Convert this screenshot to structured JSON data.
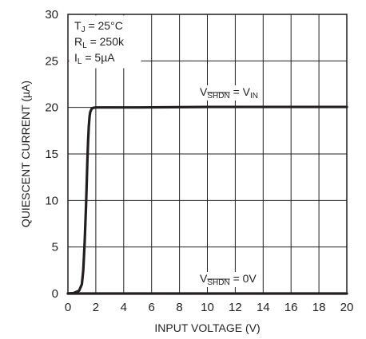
{
  "chart_data": {
    "type": "line",
    "xlabel": "INPUT VOLTAGE (V)",
    "ylabel": "QUIESCENT CURRENT (µA)",
    "xlim": [
      0,
      20
    ],
    "ylim": [
      0,
      30
    ],
    "xticks": [
      0,
      2,
      4,
      6,
      8,
      10,
      12,
      14,
      16,
      18,
      20
    ],
    "yticks": [
      0,
      5,
      10,
      15,
      20,
      25,
      30
    ],
    "grid": true,
    "legend": "none",
    "conditions": {
      "tj": {
        "sym": "T",
        "sub": "J",
        "rest": " = 25°C"
      },
      "rl": {
        "sym": "R",
        "sub": "L",
        "rest": " = 250k"
      },
      "il": {
        "sym": "I",
        "sub": "L",
        "rest": " = 5µA"
      }
    },
    "series": [
      {
        "label": {
          "v": "V",
          "sub": "SHDN",
          "rest": " = V",
          "sub2": "IN"
        },
        "x": [
          0,
          0.4,
          0.8,
          1.0,
          1.1,
          1.2,
          1.3,
          1.35,
          1.4,
          1.45,
          1.5,
          1.55,
          1.6,
          1.7,
          1.8,
          2.0,
          3.0,
          5.0,
          10.0,
          15.0,
          20.0
        ],
        "y": [
          0,
          0.05,
          0.3,
          1.0,
          2.5,
          5.5,
          9.5,
          12.0,
          14.5,
          16.5,
          18.0,
          19.0,
          19.5,
          19.85,
          19.95,
          20.0,
          20.0,
          20.0,
          20.05,
          20.05,
          20.05
        ]
      },
      {
        "label": {
          "v": "V",
          "sub": "SHDN",
          "rest": " = 0V",
          "sub2": ""
        },
        "x": [
          0,
          20
        ],
        "y": [
          0,
          0
        ]
      }
    ],
    "colors": {
      "line": "#231f20",
      "grid": "#231f20",
      "background": "#ffffff"
    }
  }
}
